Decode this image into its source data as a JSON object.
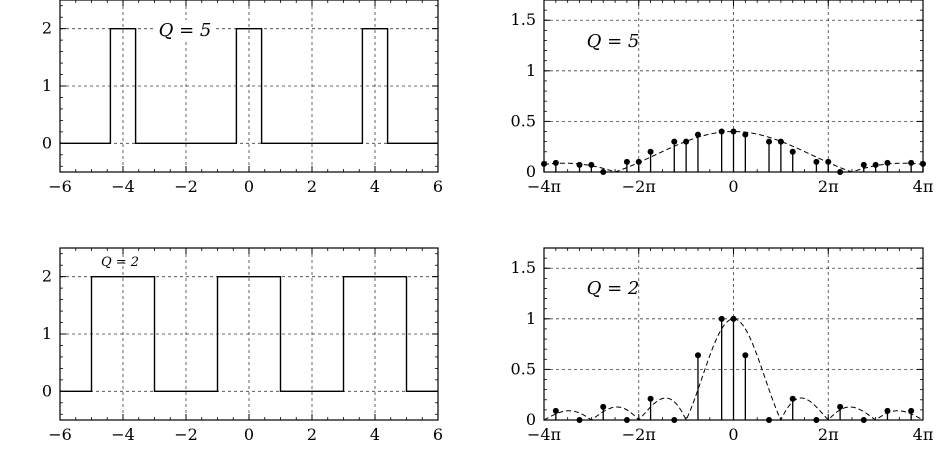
{
  "chart_data": [
    {
      "type": "line",
      "panel": "top-left",
      "annotation": "Q = 5",
      "xlim": [
        -6,
        6
      ],
      "ylim": [
        -0.5,
        2.5
      ],
      "xticks": [
        -6,
        -4,
        -2,
        0,
        2,
        4,
        6
      ],
      "xtick_labels": [
        "−6",
        "−4",
        "−2",
        "0",
        "2",
        "4",
        "6"
      ],
      "yticks": [
        0,
        1,
        2
      ],
      "ytick_labels": [
        "0",
        "1",
        "2"
      ],
      "grid": true,
      "series": [
        {
          "x": [
            -6,
            -4.4,
            -4.4,
            -3.6,
            -3.6,
            -0.4,
            -0.4,
            0.4,
            0.4,
            3.6,
            3.6,
            4.4,
            4.4,
            6
          ],
          "y": [
            0,
            0,
            2,
            2,
            0,
            0,
            2,
            2,
            0,
            0,
            2,
            2,
            0,
            0
          ]
        }
      ]
    },
    {
      "type": "stem",
      "panel": "top-right",
      "annotation": "Q = 5",
      "xlim": [
        -12.566,
        12.566
      ],
      "ylim": [
        0,
        1.7
      ],
      "xticks": [
        -12.566,
        -6.283,
        0,
        6.283,
        12.566
      ],
      "xtick_labels": [
        "−4π",
        "−2π",
        "0",
        "2π",
        "4π"
      ],
      "yticks": [
        0,
        0.5,
        1,
        1.5
      ],
      "ytick_labels": [
        "0",
        "0.5",
        "1",
        "1.5"
      ],
      "grid": true,
      "stems": {
        "x": [
          -11.781,
          -10.21,
          -8.639,
          -7.069,
          -5.498,
          -3.927,
          -2.356,
          -0.785,
          0.785,
          2.356,
          3.927,
          5.498,
          7.069,
          8.639,
          10.21,
          11.781,
          -12.566,
          -9.425,
          -6.283,
          -3.142,
          0,
          3.142,
          6.283,
          9.425,
          12.566
        ],
        "y": [
          0.09,
          0.07,
          0.0,
          0.1,
          0.2,
          0.3,
          0.37,
          0.4,
          0.37,
          0.3,
          0.2,
          0.1,
          0.0,
          0.07,
          0.09,
          0.09,
          0.08,
          0.07,
          0.1,
          0.3,
          0.4,
          0.3,
          0.1,
          0.07,
          0.08
        ]
      },
      "envelope": {
        "function": "sinc",
        "amplitude": 0.4,
        "zero": 7.854
      }
    },
    {
      "type": "line",
      "panel": "bottom-left",
      "annotation": "Q = 2",
      "xlim": [
        -6,
        6
      ],
      "ylim": [
        -0.5,
        2.5
      ],
      "xticks": [
        -6,
        -4,
        -2,
        0,
        2,
        4,
        6
      ],
      "xtick_labels": [
        "−6",
        "−4",
        "−2",
        "0",
        "2",
        "4",
        "6"
      ],
      "yticks": [
        0,
        1,
        2
      ],
      "ytick_labels": [
        "0",
        "1",
        "2"
      ],
      "grid": true,
      "series": [
        {
          "x": [
            -6,
            -5,
            -5,
            -3,
            -3,
            -1,
            -1,
            1,
            1,
            3,
            3,
            5,
            5,
            6
          ],
          "y": [
            0,
            0,
            2,
            2,
            0,
            0,
            2,
            2,
            0,
            0,
            2,
            2,
            0,
            0
          ]
        }
      ]
    },
    {
      "type": "stem",
      "panel": "bottom-right",
      "annotation": "Q = 2",
      "xlim": [
        -12.566,
        12.566
      ],
      "ylim": [
        0,
        1.7
      ],
      "xticks": [
        -12.566,
        -6.283,
        0,
        6.283,
        12.566
      ],
      "xtick_labels": [
        "−4π",
        "−2π",
        "0",
        "2π",
        "4π"
      ],
      "yticks": [
        0,
        0.5,
        1,
        1.5
      ],
      "ytick_labels": [
        "0",
        "0.5",
        "1",
        "1.5"
      ],
      "grid": true,
      "stems": {
        "x": [
          -11.781,
          -10.21,
          -8.639,
          -7.069,
          -5.498,
          -3.927,
          -2.356,
          -0.785,
          0,
          0.785,
          2.356,
          3.927,
          5.498,
          7.069,
          8.639,
          10.21,
          11.781
        ],
        "y": [
          0.09,
          0.0,
          0.13,
          0.0,
          0.21,
          0.0,
          0.64,
          1.0,
          1.0,
          0.64,
          0.0,
          0.21,
          0.0,
          0.13,
          0.0,
          0.09,
          0.09
        ]
      },
      "envelope": {
        "function": "sinc",
        "amplitude": 1.0,
        "zero": 3.1416
      }
    }
  ]
}
